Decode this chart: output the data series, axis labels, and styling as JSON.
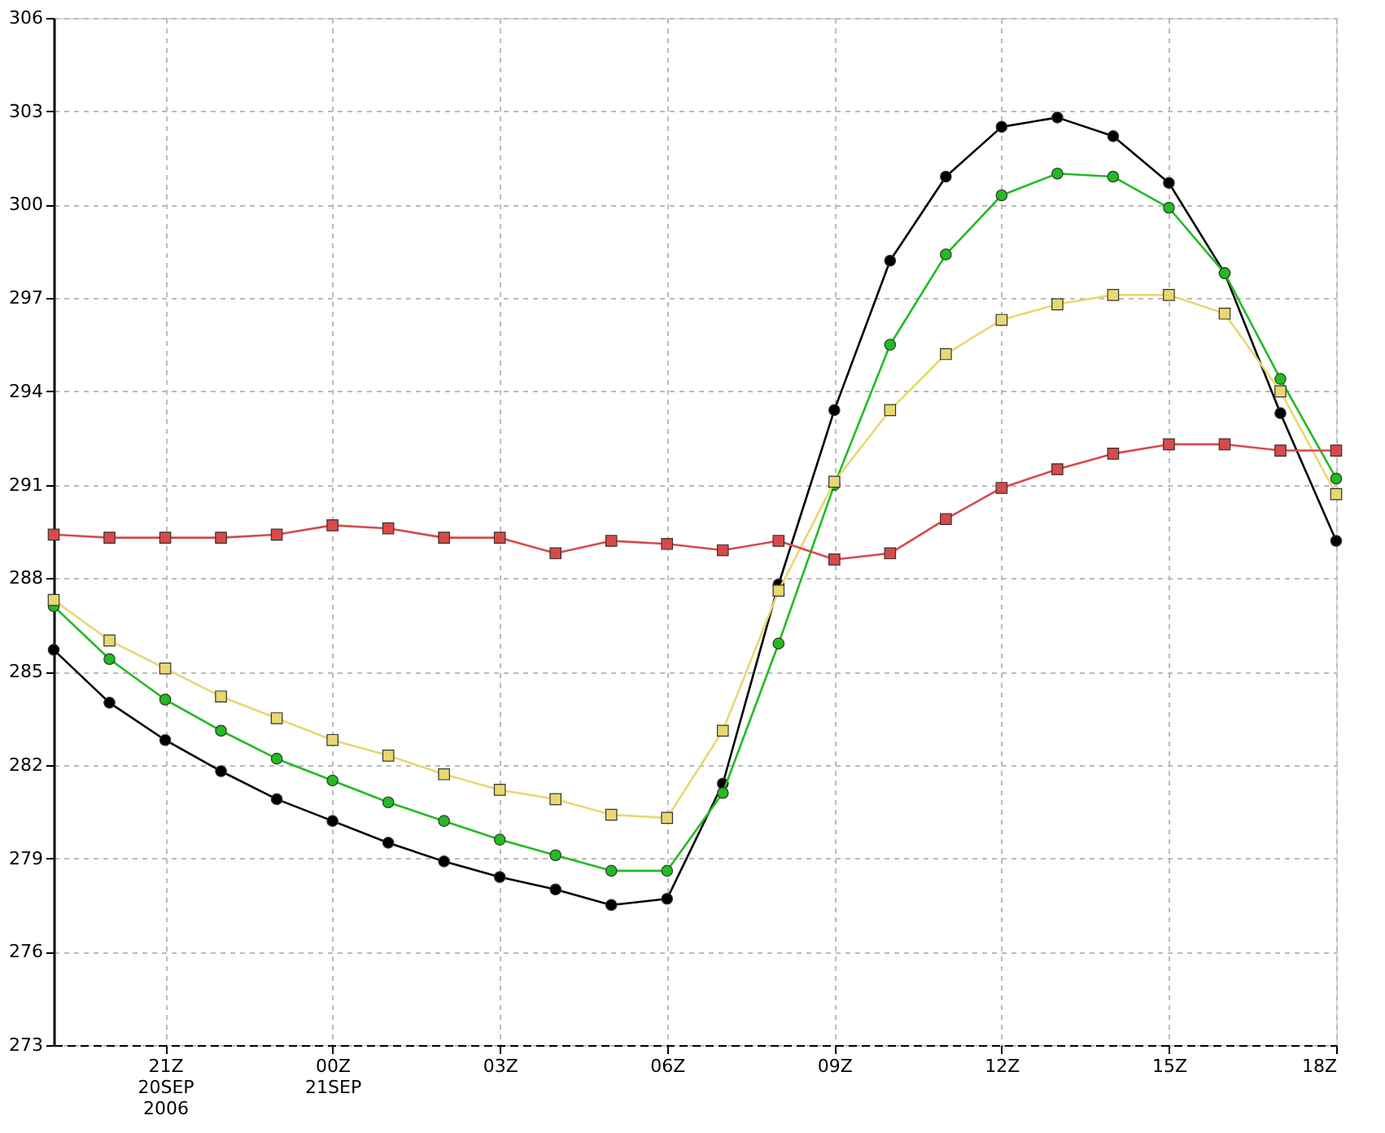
{
  "chart_data": {
    "type": "line",
    "x": [
      "2006-09-20T19:00",
      "2006-09-20T20:00",
      "2006-09-20T21:00",
      "2006-09-20T22:00",
      "2006-09-20T23:00",
      "2006-09-21T00:00",
      "2006-09-21T01:00",
      "2006-09-21T02:00",
      "2006-09-21T03:00",
      "2006-09-21T04:00",
      "2006-09-21T05:00",
      "2006-09-21T06:00",
      "2006-09-21T07:00",
      "2006-09-21T08:00",
      "2006-09-21T09:00",
      "2006-09-21T10:00",
      "2006-09-21T11:00",
      "2006-09-21T12:00",
      "2006-09-21T13:00",
      "2006-09-21T14:00",
      "2006-09-21T15:00",
      "2006-09-21T16:00",
      "2006-09-21T17:00",
      "2006-09-21T18:00"
    ],
    "xlim": [
      "2006-09-20T19:00",
      "2006-09-21T18:00"
    ],
    "xticks": [
      {
        "value": "2006-09-20T21:00",
        "label": "21Z\n20SEP\n2006"
      },
      {
        "value": "2006-09-21T00:00",
        "label": "00Z\n21SEP"
      },
      {
        "value": "2006-09-21T03:00",
        "label": "03Z"
      },
      {
        "value": "2006-09-21T06:00",
        "label": "06Z"
      },
      {
        "value": "2006-09-21T09:00",
        "label": "09Z"
      },
      {
        "value": "2006-09-21T12:00",
        "label": "12Z"
      },
      {
        "value": "2006-09-21T15:00",
        "label": "15Z"
      },
      {
        "value": "2006-09-21T18:00",
        "label": "18Z"
      }
    ],
    "ylim": [
      273,
      306
    ],
    "yticks": [
      273,
      276,
      279,
      282,
      285,
      288,
      291,
      294,
      297,
      300,
      303,
      306
    ],
    "grid": true,
    "legend": false,
    "line_style": "solid",
    "series": [
      {
        "color": "#000000",
        "marker": "circle",
        "values": [
          285.7,
          284.0,
          282.8,
          281.8,
          280.9,
          280.2,
          279.5,
          278.9,
          278.4,
          278.0,
          277.5,
          277.7,
          281.4,
          287.8,
          293.4,
          298.2,
          300.9,
          302.5,
          302.8,
          302.2,
          300.7,
          297.8,
          293.3,
          289.2
        ]
      },
      {
        "color": "#22bb22",
        "marker": "circle",
        "values": [
          287.1,
          285.4,
          284.1,
          283.1,
          282.2,
          281.5,
          280.8,
          280.2,
          279.6,
          279.1,
          278.6,
          278.6,
          281.1,
          285.9,
          291.0,
          295.5,
          298.4,
          300.3,
          301.0,
          300.9,
          299.9,
          297.8,
          294.4,
          291.2
        ]
      },
      {
        "color": "#e8d870",
        "marker": "square",
        "values": [
          287.3,
          286.0,
          285.1,
          284.2,
          283.5,
          282.8,
          282.3,
          281.7,
          281.2,
          280.9,
          280.4,
          280.3,
          283.1,
          287.6,
          291.1,
          293.4,
          295.2,
          296.3,
          296.8,
          297.1,
          297.1,
          296.5,
          294.0,
          290.7
        ]
      },
      {
        "color": "#d84a4a",
        "marker": "square",
        "values": [
          289.4,
          289.3,
          289.3,
          289.3,
          289.4,
          289.7,
          289.6,
          289.3,
          289.3,
          288.8,
          289.2,
          289.1,
          288.9,
          289.2,
          288.6,
          288.8,
          289.9,
          290.9,
          291.5,
          292.0,
          292.3,
          292.3,
          292.1,
          292.1
        ]
      }
    ]
  }
}
